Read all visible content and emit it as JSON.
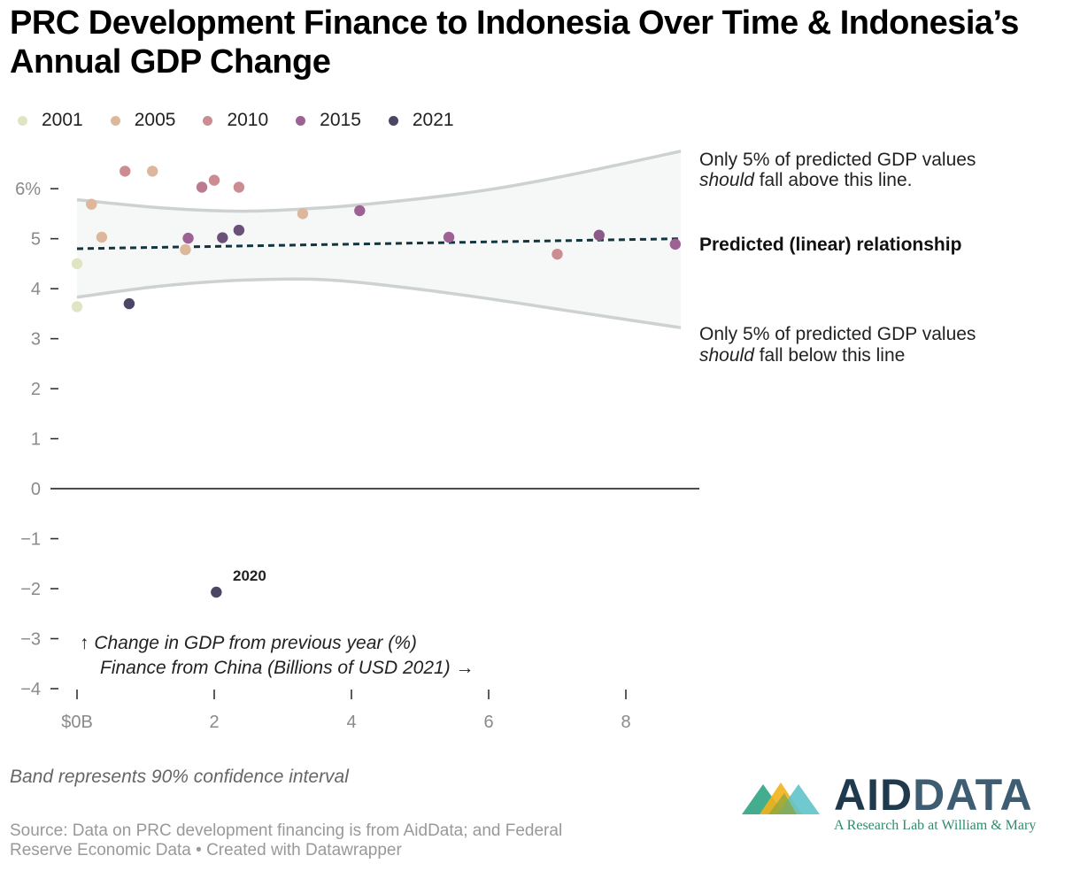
{
  "title": "PRC Development Finance to Indonesia Over Time & Indonesia’s Annual GDP Change",
  "legend": [
    {
      "label": "2001",
      "color": "#dfe5c2"
    },
    {
      "label": "2005",
      "color": "#ddb79c"
    },
    {
      "label": "2010",
      "color": "#cc8d92"
    },
    {
      "label": "2015",
      "color": "#9e6193"
    },
    {
      "label": "2021",
      "color": "#4b4566"
    }
  ],
  "annotations": {
    "upper_line1": "Only 5% of predicted GDP values",
    "upper_line2_em": "should",
    "upper_line2_rest": " fall above this line.",
    "predicted": "Predicted (linear) relationship",
    "lower_line1": "Only 5% of predicted GDP values",
    "lower_line2_em": "should",
    "lower_line2_rest": " fall below this line",
    "point_2020": "2020",
    "y_axis_label": "↑ Change in GDP from previous year (%)",
    "x_axis_label": "Finance from China (Billions of USD 2021) →"
  },
  "footer": {
    "note": "Band represents 90% confidence interval",
    "source_line1": "Source: Data on PRC development financing is from AidData; and Federal",
    "source_line2": "Reserve Economic Data • Created with Datawrapper"
  },
  "logo": {
    "aid": "AID",
    "data": "DATA",
    "tagline": "A Research Lab at William & Mary"
  },
  "chart_data": {
    "type": "scatter",
    "title": "PRC Development Finance to Indonesia Over Time & Indonesia’s Annual GDP Change",
    "xlabel": "Finance from China (Billions of USD 2021)",
    "ylabel": "Change in GDP from previous year (%)",
    "xlim": [
      0,
      8.8
    ],
    "ylim": [
      -4,
      6.8
    ],
    "x_ticks": [
      {
        "value": 0,
        "label": "$0B"
      },
      {
        "value": 2,
        "label": "2"
      },
      {
        "value": 4,
        "label": "4"
      },
      {
        "value": 6,
        "label": "6"
      },
      {
        "value": 8,
        "label": "8"
      }
    ],
    "y_ticks": [
      {
        "value": 6,
        "label": "6%"
      },
      {
        "value": 5,
        "label": "5"
      },
      {
        "value": 4,
        "label": "4"
      },
      {
        "value": 3,
        "label": "3"
      },
      {
        "value": 2,
        "label": "2"
      },
      {
        "value": 1,
        "label": "1"
      },
      {
        "value": 0,
        "label": "0"
      },
      {
        "value": -1,
        "label": "−1"
      },
      {
        "value": -2,
        "label": "−2"
      },
      {
        "value": -3,
        "label": "−3"
      },
      {
        "value": -4,
        "label": "−4"
      }
    ],
    "points": [
      {
        "x": 0.0,
        "y": 3.64,
        "color": "#dfe5c2"
      },
      {
        "x": 0.0,
        "y": 4.5,
        "color": "#dfe5c2"
      },
      {
        "x": 0.21,
        "y": 5.69,
        "color": "#ddb79c"
      },
      {
        "x": 0.36,
        "y": 5.03,
        "color": "#ddb79c"
      },
      {
        "x": 1.58,
        "y": 4.78,
        "color": "#ddb79c"
      },
      {
        "x": 1.1,
        "y": 6.35,
        "color": "#ddb79c"
      },
      {
        "x": 3.29,
        "y": 5.5,
        "color": "#ddb79c"
      },
      {
        "x": 0.7,
        "y": 6.35,
        "color": "#cc8d92"
      },
      {
        "x": 2.0,
        "y": 6.17,
        "color": "#cc8d92"
      },
      {
        "x": 2.36,
        "y": 6.03,
        "color": "#cc8d92"
      },
      {
        "x": 7.0,
        "y": 4.69,
        "color": "#cc8d92"
      },
      {
        "x": 1.82,
        "y": 6.03,
        "color": "#bb7a92"
      },
      {
        "x": 1.62,
        "y": 5.01,
        "color": "#9e6193"
      },
      {
        "x": 4.12,
        "y": 5.56,
        "color": "#9e6193"
      },
      {
        "x": 5.42,
        "y": 5.03,
        "color": "#9e6193"
      },
      {
        "x": 8.72,
        "y": 4.89,
        "color": "#9e6193"
      },
      {
        "x": 7.61,
        "y": 5.07,
        "color": "#8b5a88"
      },
      {
        "x": 2.12,
        "y": 5.02,
        "color": "#6b5079"
      },
      {
        "x": 2.36,
        "y": 5.17,
        "color": "#6b5079"
      },
      {
        "x": 2.03,
        "y": -2.07,
        "color": "#4b4566"
      },
      {
        "x": 0.76,
        "y": 3.7,
        "color": "#4b4566"
      }
    ],
    "trend_line": {
      "x": [
        0,
        8.8
      ],
      "y": [
        4.8,
        5.0
      ]
    },
    "band_upper": {
      "x": [
        0,
        1.2,
        2.4,
        3.6,
        4.8,
        6.0,
        7.2,
        8.8
      ],
      "y": [
        5.78,
        5.62,
        5.55,
        5.62,
        5.77,
        5.98,
        6.28,
        6.75
      ]
    },
    "band_lower": {
      "x": [
        0,
        1.2,
        2.4,
        3.6,
        4.8,
        6.0,
        7.2,
        8.8
      ],
      "y": [
        3.83,
        4.05,
        4.17,
        4.18,
        4.02,
        3.8,
        3.55,
        3.22
      ]
    },
    "labeled_point": {
      "x": 2.03,
      "y": -2.07,
      "label": "2020"
    }
  }
}
